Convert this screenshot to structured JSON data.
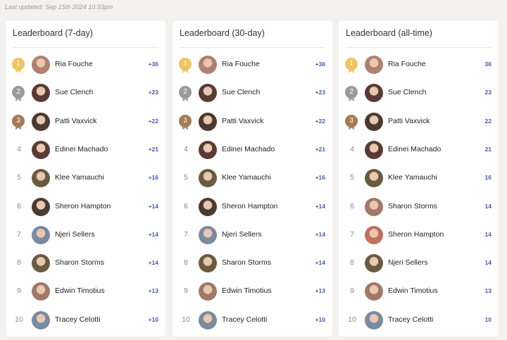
{
  "last_updated": "Last updated: Sep 15th 2024 10:33pm",
  "boards": [
    {
      "title": "Leaderboard (7-day)",
      "rows": [
        {
          "rank": 1,
          "name": "Ria Fouche",
          "score": "+36"
        },
        {
          "rank": 2,
          "name": "Sue Clench",
          "score": "+23"
        },
        {
          "rank": 3,
          "name": "Patti Vaxvick",
          "score": "+22"
        },
        {
          "rank": 4,
          "name": "Edinei Machado",
          "score": "+21"
        },
        {
          "rank": 5,
          "name": "Klee Yamauchi",
          "score": "+16"
        },
        {
          "rank": 6,
          "name": "Sheron Hampton",
          "score": "+14"
        },
        {
          "rank": 7,
          "name": "Njeri Sellers",
          "score": "+14"
        },
        {
          "rank": 8,
          "name": "Sharon Storms",
          "score": "+14"
        },
        {
          "rank": 9,
          "name": "Edwin Timotius",
          "score": "+13"
        },
        {
          "rank": 10,
          "name": "Tracey Celotti",
          "score": "+10"
        }
      ]
    },
    {
      "title": "Leaderboard (30-day)",
      "rows": [
        {
          "rank": 1,
          "name": "Ria Fouche",
          "score": "+36"
        },
        {
          "rank": 2,
          "name": "Sue Clench",
          "score": "+23"
        },
        {
          "rank": 3,
          "name": "Patti Vaxvick",
          "score": "+22"
        },
        {
          "rank": 4,
          "name": "Edinei Machado",
          "score": "+21"
        },
        {
          "rank": 5,
          "name": "Klee Yamauchi",
          "score": "+16"
        },
        {
          "rank": 6,
          "name": "Sheron Hampton",
          "score": "+14"
        },
        {
          "rank": 7,
          "name": "Njeri Sellers",
          "score": "+14"
        },
        {
          "rank": 8,
          "name": "Sharon Storms",
          "score": "+14"
        },
        {
          "rank": 9,
          "name": "Edwin Timotius",
          "score": "+13"
        },
        {
          "rank": 10,
          "name": "Tracey Celotti",
          "score": "+10"
        }
      ]
    },
    {
      "title": "Leaderboard (all-time)",
      "rows": [
        {
          "rank": 1,
          "name": "Ria Fouche",
          "score": 36
        },
        {
          "rank": 2,
          "name": "Sue Clench",
          "score": 23
        },
        {
          "rank": 3,
          "name": "Patti Vaxvick",
          "score": 22
        },
        {
          "rank": 4,
          "name": "Edinei Machado",
          "score": 21
        },
        {
          "rank": 5,
          "name": "Klee Yamauchi",
          "score": 16
        },
        {
          "rank": 6,
          "name": "Sharon Storms",
          "score": 14
        },
        {
          "rank": 7,
          "name": "Sheron Hampton",
          "score": 14
        },
        {
          "rank": 8,
          "name": "Njeri Sellers",
          "score": 14
        },
        {
          "rank": 9,
          "name": "Edwin Timotius",
          "score": 13
        },
        {
          "rank": 10,
          "name": "Tracey Celotti",
          "score": 10
        }
      ]
    }
  ]
}
